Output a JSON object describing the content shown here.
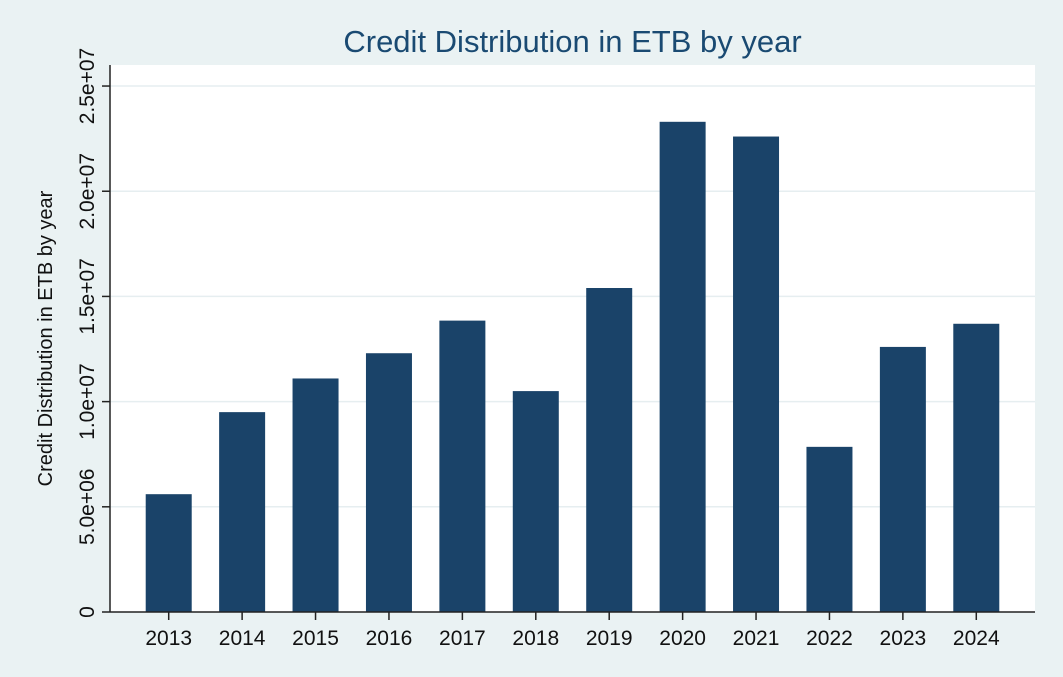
{
  "chart_data": {
    "type": "bar",
    "title": "Credit Distribution in ETB by year",
    "xlabel": "",
    "ylabel": "Credit Distribution in ETB by year",
    "categories": [
      "2013",
      "2014",
      "2015",
      "2016",
      "2017",
      "2018",
      "2019",
      "2020",
      "2021",
      "2022",
      "2023",
      "2024"
    ],
    "values": [
      5600000,
      9500000,
      11100000,
      12300000,
      13850000,
      10500000,
      15400000,
      23300000,
      22600000,
      7850000,
      12600000,
      13700000
    ],
    "ylim": [
      0,
      26000000
    ],
    "yticks": [
      0,
      5000000,
      10000000,
      15000000,
      20000000,
      25000000
    ],
    "ytick_labels": [
      "0",
      "5.0e+06",
      "1.0e+07",
      "1.5e+07",
      "2.0e+07",
      "2.5e+07"
    ],
    "grid": true,
    "legend": "none",
    "colors": {
      "bar": "#1a4369",
      "background": "#eaf2f3",
      "plot_background": "#ffffff",
      "title": "#1a4a72",
      "grid": "#e6eef0"
    }
  }
}
